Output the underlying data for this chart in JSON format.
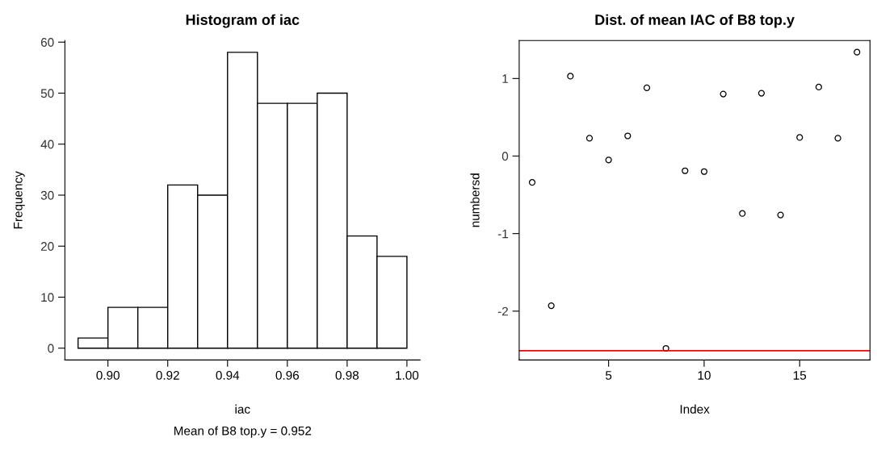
{
  "chart_data": [
    {
      "type": "histogram",
      "title": "Histogram of iac",
      "xlabel": "iac",
      "ylabel": "Frequency",
      "annotations": [
        "Mean of B8 top.y = 0.952"
      ],
      "bins": [
        0.89,
        0.9,
        0.91,
        0.92,
        0.93,
        0.94,
        0.95,
        0.96,
        0.97,
        0.98,
        0.99,
        1.0
      ],
      "values": [
        2,
        8,
        8,
        32,
        30,
        58,
        48,
        48,
        50,
        22,
        18
      ],
      "color": "#ffffff",
      "xlim": [
        0.8856,
        1.0044
      ],
      "ylim": [
        -2.32,
        60.32
      ],
      "xticks": [
        {
          "value": 0.9,
          "label": "0.90"
        },
        {
          "value": 0.92,
          "label": "0.92"
        },
        {
          "value": 0.94,
          "label": "0.94"
        },
        {
          "value": 0.96,
          "label": "0.96"
        },
        {
          "value": 0.98,
          "label": "0.98"
        },
        {
          "value": 1.0,
          "label": "1.00"
        }
      ],
      "yticks": [
        0,
        10,
        20,
        30,
        40,
        50,
        60
      ],
      "grid": false
    },
    {
      "type": "scatter",
      "title": "Dist. of mean IAC of B8 top.y",
      "xlabel": "Index",
      "ylabel": "numbersd",
      "x": [
        1,
        2,
        3,
        4,
        5,
        6,
        7,
        8,
        9,
        10,
        11,
        12,
        13,
        14,
        15,
        16,
        17,
        18
      ],
      "values": [
        -0.34,
        -1.93,
        1.03,
        0.23,
        -0.05,
        0.26,
        0.88,
        -2.48,
        -0.19,
        -0.2,
        0.8,
        -0.74,
        0.81,
        -0.76,
        0.24,
        0.89,
        0.23,
        1.34
      ],
      "color": "#000000",
      "marker": "circle",
      "ref_lines": [
        {
          "axis": "y",
          "value": -2.51,
          "color": "#ff0000"
        }
      ],
      "xlim": [
        0.32,
        18.68
      ],
      "ylim": [
        -2.63,
        1.49
      ],
      "xticks": [
        5,
        10,
        15
      ],
      "yticks": [
        -2,
        -1,
        0,
        1
      ],
      "grid": false
    }
  ]
}
